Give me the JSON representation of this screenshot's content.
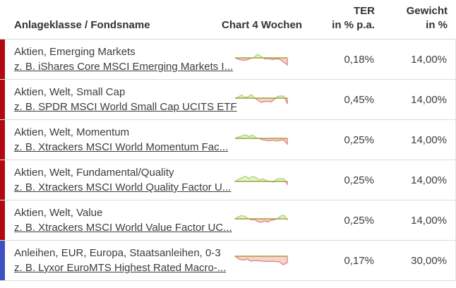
{
  "header": {
    "col_name": "Anlageklasse / Fondsname",
    "col_chart": "Chart 4 Wochen",
    "col_ter_line1": "TER",
    "col_ter_line2": "in % p.a.",
    "col_weight_line1": "Gewicht",
    "col_weight_line2": "in %"
  },
  "colors": {
    "equity_bar": "#b20a10",
    "bond_bar": "#3f51c1",
    "spark_green_fill": "#e3f3cd",
    "spark_green_stroke": "#a6d47c",
    "spark_red_fill": "#f7d2d0",
    "spark_red_stroke": "#de8181",
    "spark_baseline": "#a8a73c"
  },
  "rows": [
    {
      "asset_class": "Aktien, Emerging Markets",
      "fund_link": "z. B. iShares Core MSCI Emerging Markets I...",
      "ter": "0,18%",
      "weight": "14,00%",
      "bar_color": "#b20a10",
      "spark": {
        "baseline": 13,
        "points": [
          0,
          -2,
          -3.5,
          -3,
          -1,
          0.5,
          5,
          2,
          -1.5,
          -1,
          -2.5,
          -1.5,
          -2,
          -6,
          -10
        ]
      }
    },
    {
      "asset_class": "Aktien, Welt, Small Cap",
      "fund_link": "z. B. SPDR MSCI World Small Cap UCITS ETF",
      "ter": "0,45%",
      "weight": "14,00%",
      "bar_color": "#b20a10",
      "spark": {
        "baseline": 13,
        "points": [
          0,
          1.5,
          4.5,
          1,
          2,
          5,
          0,
          -3,
          -6,
          -5,
          -4.5,
          -5.5,
          -2,
          2.5,
          3,
          3,
          -8
        ]
      }
    },
    {
      "asset_class": "Aktien, Welt, Momentum",
      "fund_link": "z. B. Xtrackers MSCI World Momentum Fac...",
      "ter": "0,25%",
      "weight": "14,00%",
      "bar_color": "#b20a10",
      "spark": {
        "baseline": 13,
        "points": [
          0,
          2,
          3.5,
          5,
          2.5,
          4.5,
          1,
          -0.5,
          -2,
          -3,
          -3.5,
          -2.5,
          -4,
          -2.5,
          -2.5,
          -8
        ]
      }
    },
    {
      "asset_class": "Aktien, Welt, Fundamental/Quality",
      "fund_link": "z. B. Xtrackers MSCI World Quality Factor U...",
      "ter": "0,25%",
      "weight": "14,00%",
      "bar_color": "#b20a10",
      "spark": {
        "baseline": 17,
        "points": [
          0,
          3,
          5,
          7.5,
          4,
          7,
          5.5,
          2,
          4,
          1,
          0.5,
          -1,
          3.5,
          4,
          4,
          -4
        ]
      }
    },
    {
      "asset_class": "Aktien, Welt, Value",
      "fund_link": "z. B. Xtrackers MSCI World Value Factor UC...",
      "ter": "0,25%",
      "weight": "14,00%",
      "bar_color": "#b20a10",
      "spark": {
        "baseline": 13,
        "points": [
          0,
          3,
          4.5,
          3.5,
          0.5,
          -1.5,
          -1,
          -4,
          -5,
          -3,
          -4.5,
          -2,
          -1.5,
          0.5,
          4,
          5,
          -1
        ]
      }
    },
    {
      "asset_class": "Anleihen, EUR, Europa, Staatsanleihen, 0-3",
      "fund_link": "z. B. Lyxor EuroMTS Highest Rated Macro-...",
      "ter": "0,17%",
      "weight": "30,00%",
      "bar_color": "#3f51c1",
      "spark": {
        "baseline": 9,
        "points": [
          0,
          -4,
          -5.5,
          -4,
          -7,
          -6,
          -6.5,
          -7,
          -7.5,
          -7,
          -7.5,
          -8,
          -12,
          -9
        ]
      }
    }
  ]
}
